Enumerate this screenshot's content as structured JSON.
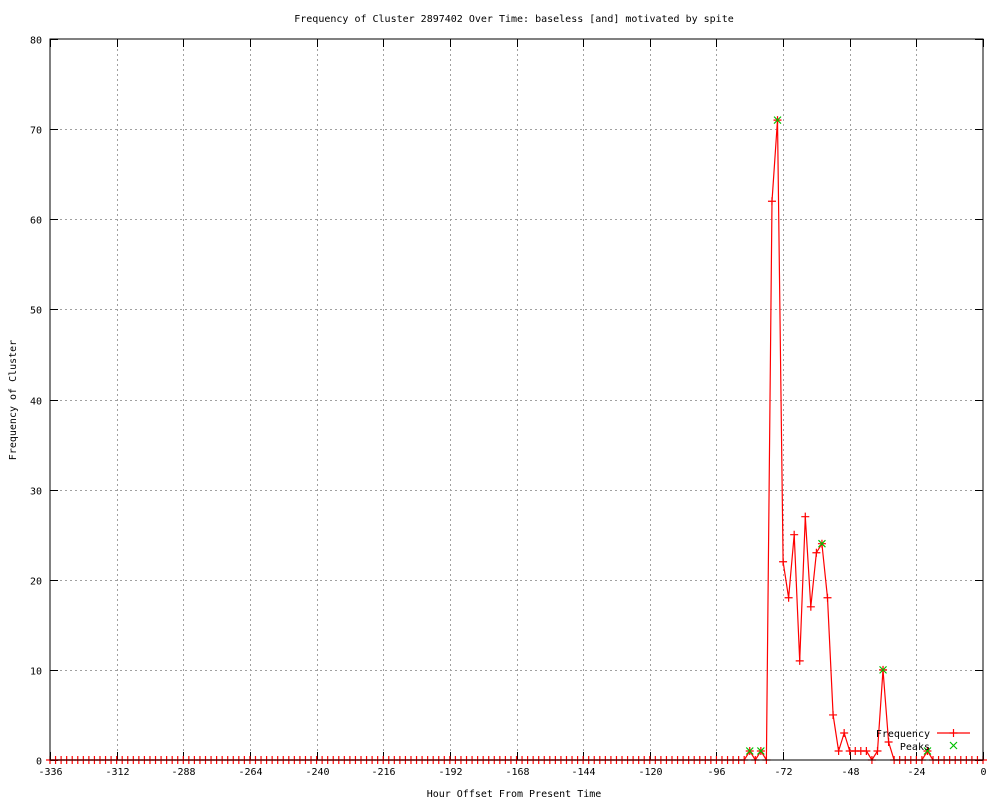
{
  "chart_data": {
    "type": "line",
    "title": "Frequency of Cluster 2897402 Over Time: baseless [and] motivated by spite",
    "xlabel": "Hour Offset From Present Time",
    "ylabel": "Frequency of Cluster",
    "xlim": [
      -336,
      0
    ],
    "ylim": [
      0,
      80
    ],
    "xticks": [
      -336,
      -312,
      -288,
      -264,
      -240,
      -216,
      -192,
      -168,
      -144,
      -120,
      -96,
      -72,
      -48,
      -24,
      0
    ],
    "yticks": [
      0,
      10,
      20,
      30,
      40,
      50,
      60,
      70,
      80
    ],
    "grid": true,
    "legend_position": "bottom-right",
    "series": [
      {
        "name": "Frequency",
        "color": "#ff0000",
        "marker": "plus",
        "x": [
          -336,
          -334,
          -332,
          -330,
          -328,
          -326,
          -324,
          -322,
          -320,
          -318,
          -316,
          -314,
          -312,
          -310,
          -308,
          -306,
          -304,
          -302,
          -300,
          -298,
          -296,
          -294,
          -292,
          -290,
          -288,
          -286,
          -284,
          -282,
          -280,
          -278,
          -276,
          -274,
          -272,
          -270,
          -268,
          -266,
          -264,
          -262,
          -260,
          -258,
          -256,
          -254,
          -252,
          -250,
          -248,
          -246,
          -244,
          -242,
          -240,
          -238,
          -236,
          -234,
          -232,
          -230,
          -228,
          -226,
          -224,
          -222,
          -220,
          -218,
          -216,
          -214,
          -212,
          -210,
          -208,
          -206,
          -204,
          -202,
          -200,
          -198,
          -196,
          -194,
          -192,
          -190,
          -188,
          -186,
          -184,
          -182,
          -180,
          -178,
          -176,
          -174,
          -172,
          -170,
          -168,
          -166,
          -164,
          -162,
          -160,
          -158,
          -156,
          -154,
          -152,
          -150,
          -148,
          -146,
          -144,
          -142,
          -140,
          -138,
          -136,
          -134,
          -132,
          -130,
          -128,
          -126,
          -124,
          -122,
          -120,
          -118,
          -116,
          -114,
          -112,
          -110,
          -108,
          -106,
          -104,
          -102,
          -100,
          -98,
          -96,
          -94,
          -92,
          -90,
          -88,
          -86,
          -84,
          -82,
          -80,
          -78,
          -76,
          -74,
          -72,
          -70,
          -68,
          -66,
          -64,
          -62,
          -60,
          -58,
          -56,
          -54,
          -52,
          -50,
          -48,
          -46,
          -44,
          -42,
          -40,
          -38,
          -36,
          -34,
          -32,
          -30,
          -28,
          -26,
          -24,
          -22,
          -20,
          -18,
          -16,
          -14,
          -12,
          -10,
          -8,
          -6,
          -4,
          -2,
          0
        ],
        "y": [
          0,
          0,
          0,
          0,
          0,
          0,
          0,
          0,
          0,
          0,
          0,
          0,
          0,
          0,
          0,
          0,
          0,
          0,
          0,
          0,
          0,
          0,
          0,
          0,
          0,
          0,
          0,
          0,
          0,
          0,
          0,
          0,
          0,
          0,
          0,
          0,
          0,
          0,
          0,
          0,
          0,
          0,
          0,
          0,
          0,
          0,
          0,
          0,
          0,
          0,
          0,
          0,
          0,
          0,
          0,
          0,
          0,
          0,
          0,
          0,
          0,
          0,
          0,
          0,
          0,
          0,
          0,
          0,
          0,
          0,
          0,
          0,
          0,
          0,
          0,
          0,
          0,
          0,
          0,
          0,
          0,
          0,
          0,
          0,
          0,
          0,
          0,
          0,
          0,
          0,
          0,
          0,
          0,
          0,
          0,
          0,
          0,
          0,
          0,
          0,
          0,
          0,
          0,
          0,
          0,
          0,
          0,
          0,
          0,
          0,
          0,
          0,
          0,
          0,
          0,
          0,
          0,
          0,
          0,
          0,
          0,
          0,
          0,
          0,
          0,
          0,
          1,
          0,
          1,
          0,
          62,
          71,
          22,
          18,
          25,
          11,
          27,
          17,
          23,
          24,
          18,
          5,
          1,
          3,
          1,
          1,
          1,
          1,
          0,
          1,
          10,
          2,
          0,
          0,
          0,
          0,
          0,
          0,
          1,
          0,
          0,
          0,
          0,
          0,
          0,
          0,
          0,
          0,
          0
        ]
      },
      {
        "name": "Peaks",
        "color": "#00c000",
        "marker": "x",
        "x": [
          -84,
          -80,
          -74,
          -58,
          -36,
          -20
        ],
        "y": [
          1,
          1,
          71,
          24,
          10,
          1
        ]
      }
    ]
  }
}
